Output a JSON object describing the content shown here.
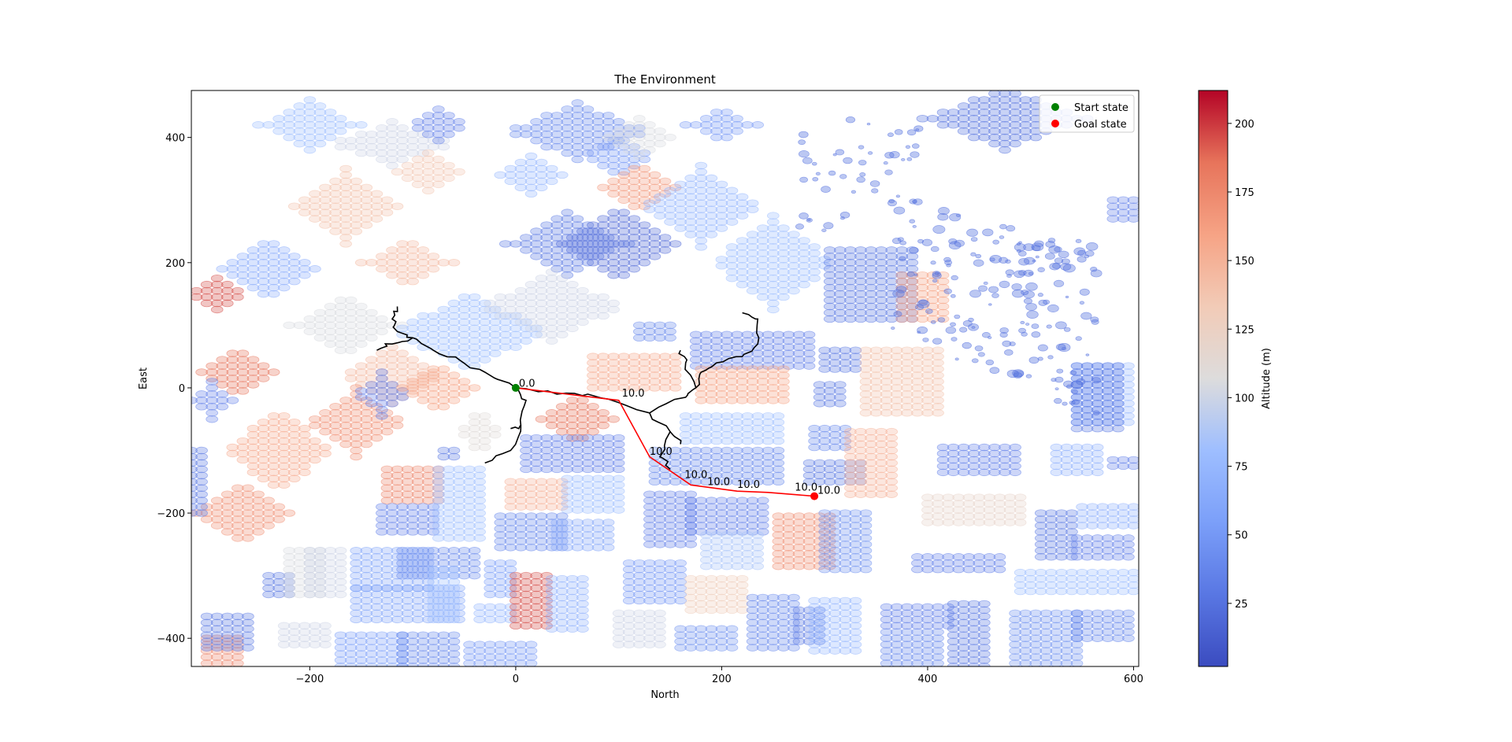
{
  "chart_data": {
    "type": "scatter",
    "title": "The Environment",
    "xlabel": "North",
    "ylabel": "East",
    "xlim": [
      -315,
      605
    ],
    "ylim": [
      -445,
      475
    ],
    "xticks": [
      -200,
      0,
      200,
      400,
      600
    ],
    "xtick_labels": [
      "−200",
      "0",
      "200",
      "400",
      "600"
    ],
    "yticks": [
      -400,
      -200,
      0,
      200,
      400
    ],
    "ytick_labels": [
      "−400",
      "−200",
      "0",
      "200",
      "400"
    ],
    "legend": {
      "placement": "top-right",
      "entries": [
        {
          "label": "Start state",
          "color": "#008000"
        },
        {
          "label": "Goal state",
          "color": "#ff0000"
        }
      ]
    },
    "colorbar": {
      "label": "Altitude (m)",
      "range": [
        2,
        212
      ],
      "ticks": [
        25,
        50,
        75,
        100,
        125,
        150,
        175,
        200
      ],
      "tick_labels": [
        "25",
        "50",
        "75",
        "100",
        "125",
        "150",
        "175",
        "200"
      ],
      "colormap": "coolwarm"
    },
    "start_state": {
      "x": 0,
      "y": 0
    },
    "goal_state": {
      "x": 290,
      "y": -173
    },
    "path": {
      "color": "#ff0000",
      "points": [
        [
          0,
          0
        ],
        [
          100,
          -20
        ],
        [
          130,
          -110
        ],
        [
          170,
          -155
        ],
        [
          215,
          -165
        ],
        [
          245,
          -167
        ],
        [
          290,
          -173
        ]
      ]
    },
    "path_labels": [
      {
        "x": 3,
        "y": 2,
        "text": "0.0"
      },
      {
        "x": 103,
        "y": -14,
        "text": "10.0"
      },
      {
        "x": 130,
        "y": -107,
        "text": "10.0"
      },
      {
        "x": 164,
        "y": -144,
        "text": "10.0"
      },
      {
        "x": 186,
        "y": -155,
        "text": "10.0"
      },
      {
        "x": 215,
        "y": -160,
        "text": "10.0"
      },
      {
        "x": 271,
        "y": -164,
        "text": "10.0"
      },
      {
        "x": 293,
        "y": -169,
        "text": "10.0"
      }
    ],
    "tree_color": "#000000",
    "obstacle_blocks": [
      {
        "shape": "diamond",
        "cx": -240,
        "cy": 190,
        "w": 90,
        "h": 100,
        "altitude": 65
      },
      {
        "shape": "diamond",
        "cx": -165,
        "cy": 290,
        "w": 100,
        "h": 120,
        "altitude": 140
      },
      {
        "shape": "diamond",
        "cx": -120,
        "cy": 390,
        "w": 120,
        "h": 70,
        "altitude": 100
      },
      {
        "shape": "diamond",
        "cx": -85,
        "cy": 345,
        "w": 60,
        "h": 60,
        "altitude": 135
      },
      {
        "shape": "diamond",
        "cx": -200,
        "cy": 420,
        "w": 100,
        "h": 80,
        "altitude": 80
      },
      {
        "shape": "diamond",
        "cx": -270,
        "cy": 25,
        "w": 70,
        "h": 80,
        "altitude": 185
      },
      {
        "shape": "diamond",
        "cx": -290,
        "cy": 150,
        "w": 60,
        "h": 50,
        "altitude": 195
      },
      {
        "shape": "diamond",
        "cx": -165,
        "cy": 100,
        "w": 110,
        "h": 100,
        "altitude": 105
      },
      {
        "shape": "diamond",
        "cx": -105,
        "cy": 200,
        "w": 90,
        "h": 80,
        "altitude": 145
      },
      {
        "shape": "diamond",
        "cx": -45,
        "cy": 90,
        "w": 150,
        "h": 130,
        "altitude": 80
      },
      {
        "shape": "diamond",
        "cx": -120,
        "cy": 20,
        "w": 100,
        "h": 90,
        "altitude": 145
      },
      {
        "shape": "diamond",
        "cx": -230,
        "cy": -100,
        "w": 110,
        "h": 130,
        "altitude": 155
      },
      {
        "shape": "diamond",
        "cx": -155,
        "cy": -55,
        "w": 100,
        "h": 110,
        "altitude": 170
      },
      {
        "shape": "diamond",
        "cx": -265,
        "cy": -200,
        "w": 90,
        "h": 100,
        "altitude": 170
      },
      {
        "shape": "diamond",
        "cx": -295,
        "cy": -20,
        "w": 40,
        "h": 60,
        "altitude": 35
      },
      {
        "shape": "diamond",
        "cx": -130,
        "cy": -10,
        "w": 60,
        "h": 70,
        "altitude": 35
      },
      {
        "shape": "diamond",
        "cx": -75,
        "cy": 0,
        "w": 70,
        "h": 80,
        "altitude": 160
      },
      {
        "shape": "diamond",
        "cx": -35,
        "cy": -70,
        "w": 50,
        "h": 70,
        "altitude": 110
      },
      {
        "shape": "diamond",
        "cx": 60,
        "cy": 410,
        "w": 140,
        "h": 90,
        "altitude": 40
      },
      {
        "shape": "diamond",
        "cx": 15,
        "cy": 340,
        "w": 60,
        "h": 60,
        "altitude": 75
      },
      {
        "shape": "diamond",
        "cx": -75,
        "cy": 420,
        "w": 60,
        "h": 50,
        "altitude": 35
      },
      {
        "shape": "diamond",
        "cx": 50,
        "cy": 230,
        "w": 120,
        "h": 100,
        "altitude": 30
      },
      {
        "shape": "diamond",
        "cx": 100,
        "cy": 230,
        "w": 110,
        "h": 120,
        "altitude": 20
      },
      {
        "shape": "diamond",
        "cx": 35,
        "cy": 130,
        "w": 140,
        "h": 110,
        "altitude": 100
      },
      {
        "shape": "diamond",
        "cx": 100,
        "cy": 370,
        "w": 70,
        "h": 70,
        "altitude": 50
      },
      {
        "shape": "diamond",
        "cx": 120,
        "cy": 400,
        "w": 60,
        "h": 60,
        "altitude": 105
      },
      {
        "shape": "diamond",
        "cx": 120,
        "cy": 320,
        "w": 70,
        "h": 80,
        "altitude": 165
      },
      {
        "shape": "diamond",
        "cx": 180,
        "cy": 290,
        "w": 120,
        "h": 130,
        "altitude": 75
      },
      {
        "shape": "diamond",
        "cx": 200,
        "cy": 420,
        "w": 70,
        "h": 60,
        "altitude": 50
      },
      {
        "shape": "diamond",
        "cx": 250,
        "cy": 200,
        "w": 120,
        "h": 150,
        "altitude": 80
      },
      {
        "shape": "diamond",
        "cx": 475,
        "cy": 430,
        "w": 160,
        "h": 100,
        "altitude": 25
      },
      {
        "shape": "diamond",
        "cx": 60,
        "cy": -50,
        "w": 70,
        "h": 80,
        "altitude": 185
      },
      {
        "shape": "rect",
        "x0": 120,
        "x1": 155,
        "y0": 80,
        "y1": 100,
        "altitude": 40
      },
      {
        "shape": "rect",
        "x0": 175,
        "x1": 285,
        "y0": 35,
        "y1": 85,
        "altitude": 35
      },
      {
        "shape": "rect",
        "x0": 75,
        "x1": 155,
        "y0": 0,
        "y1": 50,
        "altitude": 155
      },
      {
        "shape": "rect",
        "x0": 180,
        "x1": 265,
        "y0": -20,
        "y1": 30,
        "altitude": 160
      },
      {
        "shape": "rect",
        "x0": 300,
        "x1": 330,
        "y0": 30,
        "y1": 65,
        "altitude": 30
      },
      {
        "shape": "rect",
        "x0": 295,
        "x1": 320,
        "y0": -25,
        "y1": 10,
        "altitude": 30
      },
      {
        "shape": "rect",
        "x0": 340,
        "x1": 410,
        "y0": -40,
        "y1": 60,
        "altitude": 140
      },
      {
        "shape": "rect",
        "x0": 305,
        "x1": 385,
        "y0": 110,
        "y1": 220,
        "altitude": 30
      },
      {
        "shape": "rect",
        "x0": 375,
        "x1": 420,
        "y0": 110,
        "y1": 180,
        "altitude": 160
      },
      {
        "shape": "rect",
        "x0": 165,
        "x1": 255,
        "y0": -85,
        "y1": -40,
        "altitude": 80
      },
      {
        "shape": "rect",
        "x0": 135,
        "x1": 255,
        "y0": -150,
        "y1": -95,
        "altitude": 40
      },
      {
        "shape": "rect",
        "x0": 290,
        "x1": 320,
        "y0": -95,
        "y1": -65,
        "altitude": 40
      },
      {
        "shape": "rect",
        "x0": 285,
        "x1": 335,
        "y0": -150,
        "y1": -120,
        "altitude": 30
      },
      {
        "shape": "rect",
        "x0": 325,
        "x1": 370,
        "y0": -170,
        "y1": -65,
        "altitude": 150
      },
      {
        "shape": "rect",
        "x0": 130,
        "x1": 170,
        "y0": -250,
        "y1": -170,
        "altitude": 35
      },
      {
        "shape": "rect",
        "x0": 170,
        "x1": 240,
        "y0": -230,
        "y1": -175,
        "altitude": 35
      },
      {
        "shape": "rect",
        "x0": 185,
        "x1": 235,
        "y0": -285,
        "y1": -235,
        "altitude": 85
      },
      {
        "shape": "rect",
        "x0": 255,
        "x1": 305,
        "y0": -285,
        "y1": -200,
        "altitude": 170
      },
      {
        "shape": "rect",
        "x0": 300,
        "x1": 340,
        "y0": -290,
        "y1": -200,
        "altitude": 45
      },
      {
        "shape": "rect",
        "x0": -125,
        "x1": -70,
        "y0": -180,
        "y1": -130,
        "altitude": 175
      },
      {
        "shape": "rect",
        "x0": -130,
        "x1": -80,
        "y0": -230,
        "y1": -185,
        "altitude": 35
      },
      {
        "shape": "rect",
        "x0": -75,
        "x1": -35,
        "y0": -240,
        "y1": -130,
        "altitude": 80
      },
      {
        "shape": "rect",
        "x0": -5,
        "x1": 45,
        "y0": -190,
        "y1": -145,
        "altitude": 150
      },
      {
        "shape": "rect",
        "x0": 50,
        "x1": 105,
        "y0": -195,
        "y1": -145,
        "altitude": 80
      },
      {
        "shape": "rect",
        "x0": -15,
        "x1": 45,
        "y0": -255,
        "y1": -205,
        "altitude": 40
      },
      {
        "shape": "rect",
        "x0": 40,
        "x1": 95,
        "y0": -255,
        "y1": -215,
        "altitude": 60
      },
      {
        "shape": "rect",
        "x0": 10,
        "x1": 105,
        "y0": -130,
        "y1": -80,
        "altitude": 35
      },
      {
        "shape": "rect",
        "x0": -70,
        "x1": -55,
        "y0": -110,
        "y1": -95,
        "altitude": 30
      },
      {
        "shape": "rect",
        "x0": -155,
        "x1": -85,
        "y0": -320,
        "y1": -260,
        "altitude": 60
      },
      {
        "shape": "rect",
        "x0": -110,
        "x1": -40,
        "y0": -300,
        "y1": -260,
        "altitude": 40
      },
      {
        "shape": "rect",
        "x0": -155,
        "x1": -55,
        "y0": -370,
        "y1": -320,
        "altitude": 60
      },
      {
        "shape": "rect",
        "x0": -80,
        "x1": -55,
        "y0": -370,
        "y1": -290,
        "altitude": 80
      },
      {
        "shape": "rect",
        "x0": -240,
        "x1": -220,
        "y0": -330,
        "y1": -300,
        "altitude": 30
      },
      {
        "shape": "rect",
        "x0": -220,
        "x1": -190,
        "y0": -330,
        "y1": -260,
        "altitude": 105
      },
      {
        "shape": "rect",
        "x0": -200,
        "x1": -170,
        "y0": -330,
        "y1": -260,
        "altitude": 100
      },
      {
        "shape": "rect",
        "x0": -25,
        "x1": -5,
        "y0": -330,
        "y1": -280,
        "altitude": 55
      },
      {
        "shape": "rect",
        "x0": -35,
        "x1": -5,
        "y0": -370,
        "y1": -345,
        "altitude": 75
      },
      {
        "shape": "rect",
        "x0": 0,
        "x1": 30,
        "y0": -380,
        "y1": -295,
        "altitude": 195
      },
      {
        "shape": "rect",
        "x0": 35,
        "x1": 70,
        "y0": -345,
        "y1": -300,
        "altitude": 70
      },
      {
        "shape": "rect",
        "x0": 35,
        "x1": 70,
        "y0": -385,
        "y1": -355,
        "altitude": 70
      },
      {
        "shape": "rect",
        "x0": 110,
        "x1": 160,
        "y0": -340,
        "y1": -280,
        "altitude": 50
      },
      {
        "shape": "rect",
        "x0": 170,
        "x1": 220,
        "y0": -355,
        "y1": -305,
        "altitude": 130
      },
      {
        "shape": "rect",
        "x0": 100,
        "x1": 140,
        "y0": -410,
        "y1": -355,
        "altitude": 100
      },
      {
        "shape": "rect",
        "x0": 160,
        "x1": 210,
        "y0": -415,
        "y1": -380,
        "altitude": 45
      },
      {
        "shape": "rect",
        "x0": 230,
        "x1": 275,
        "y0": -415,
        "y1": -330,
        "altitude": 40
      },
      {
        "shape": "rect",
        "x0": 275,
        "x1": 300,
        "y0": -405,
        "y1": -355,
        "altitude": 30
      },
      {
        "shape": "rect",
        "x0": 290,
        "x1": 335,
        "y0": -420,
        "y1": -335,
        "altitude": 75
      },
      {
        "shape": "rect",
        "x0": 360,
        "x1": 410,
        "y0": -440,
        "y1": -385,
        "altitude": 40
      },
      {
        "shape": "rect",
        "x0": 360,
        "x1": 420,
        "y0": -380,
        "y1": -345,
        "altitude": 35
      },
      {
        "shape": "rect",
        "x0": 425,
        "x1": 460,
        "y0": -445,
        "y1": -345,
        "altitude": 30
      },
      {
        "shape": "rect",
        "x0": 390,
        "x1": 470,
        "y0": -290,
        "y1": -270,
        "altitude": 35
      },
      {
        "shape": "rect",
        "x0": 485,
        "x1": 545,
        "y0": -440,
        "y1": -360,
        "altitude": 45
      },
      {
        "shape": "rect",
        "x0": 545,
        "x1": 595,
        "y0": -400,
        "y1": -360,
        "altitude": 40
      },
      {
        "shape": "rect",
        "x0": 490,
        "x1": 600,
        "y0": -325,
        "y1": -290,
        "altitude": 80
      },
      {
        "shape": "rect",
        "x0": 510,
        "x1": 545,
        "y0": -270,
        "y1": -200,
        "altitude": 30
      },
      {
        "shape": "rect",
        "x0": 545,
        "x1": 600,
        "y0": -270,
        "y1": -240,
        "altitude": 35
      },
      {
        "shape": "rect",
        "x0": 550,
        "x1": 600,
        "y0": -220,
        "y1": -185,
        "altitude": 70
      },
      {
        "shape": "rect",
        "x0": 400,
        "x1": 490,
        "y0": -215,
        "y1": -175,
        "altitude": 120
      },
      {
        "shape": "rect",
        "x0": 415,
        "x1": 490,
        "y0": -135,
        "y1": -90,
        "altitude": 35
      },
      {
        "shape": "rect",
        "x0": 525,
        "x1": 570,
        "y0": -135,
        "y1": -90,
        "altitude": 70
      },
      {
        "shape": "rect",
        "x0": 545,
        "x1": 600,
        "y0": -55,
        "y1": 35,
        "altitude": 75
      },
      {
        "shape": "rect",
        "x0": 545,
        "x1": 585,
        "y0": -65,
        "y1": 40,
        "altitude": 30
      },
      {
        "shape": "rect",
        "x0": 580,
        "x1": 605,
        "y0": -125,
        "y1": -110,
        "altitude": 35
      },
      {
        "shape": "rect",
        "x0": 580,
        "x1": 605,
        "y0": 270,
        "y1": 300,
        "altitude": 35
      },
      {
        "shape": "rect",
        "x0": -300,
        "x1": -265,
        "y0": -440,
        "y1": -395,
        "altitude": 175
      },
      {
        "shape": "rect",
        "x0": -300,
        "x1": -260,
        "y0": -415,
        "y1": -365,
        "altitude": 30
      },
      {
        "shape": "rect",
        "x0": -225,
        "x1": -185,
        "y0": -410,
        "y1": -375,
        "altitude": 100
      },
      {
        "shape": "rect",
        "x0": -170,
        "x1": -110,
        "y0": -445,
        "y1": -390,
        "altitude": 55
      },
      {
        "shape": "rect",
        "x0": -110,
        "x1": -60,
        "y0": -445,
        "y1": -390,
        "altitude": 40
      },
      {
        "shape": "rect",
        "x0": -45,
        "x1": 20,
        "y0": -440,
        "y1": -410,
        "altitude": 50
      },
      {
        "shape": "rect",
        "x0": -315,
        "x1": -300,
        "y0": -200,
        "y1": -100,
        "altitude": 30
      }
    ],
    "scatter_field": {
      "x": [
        365,
        565
      ],
      "y": [
        -70,
        330
      ],
      "altitude": 25
    }
  }
}
